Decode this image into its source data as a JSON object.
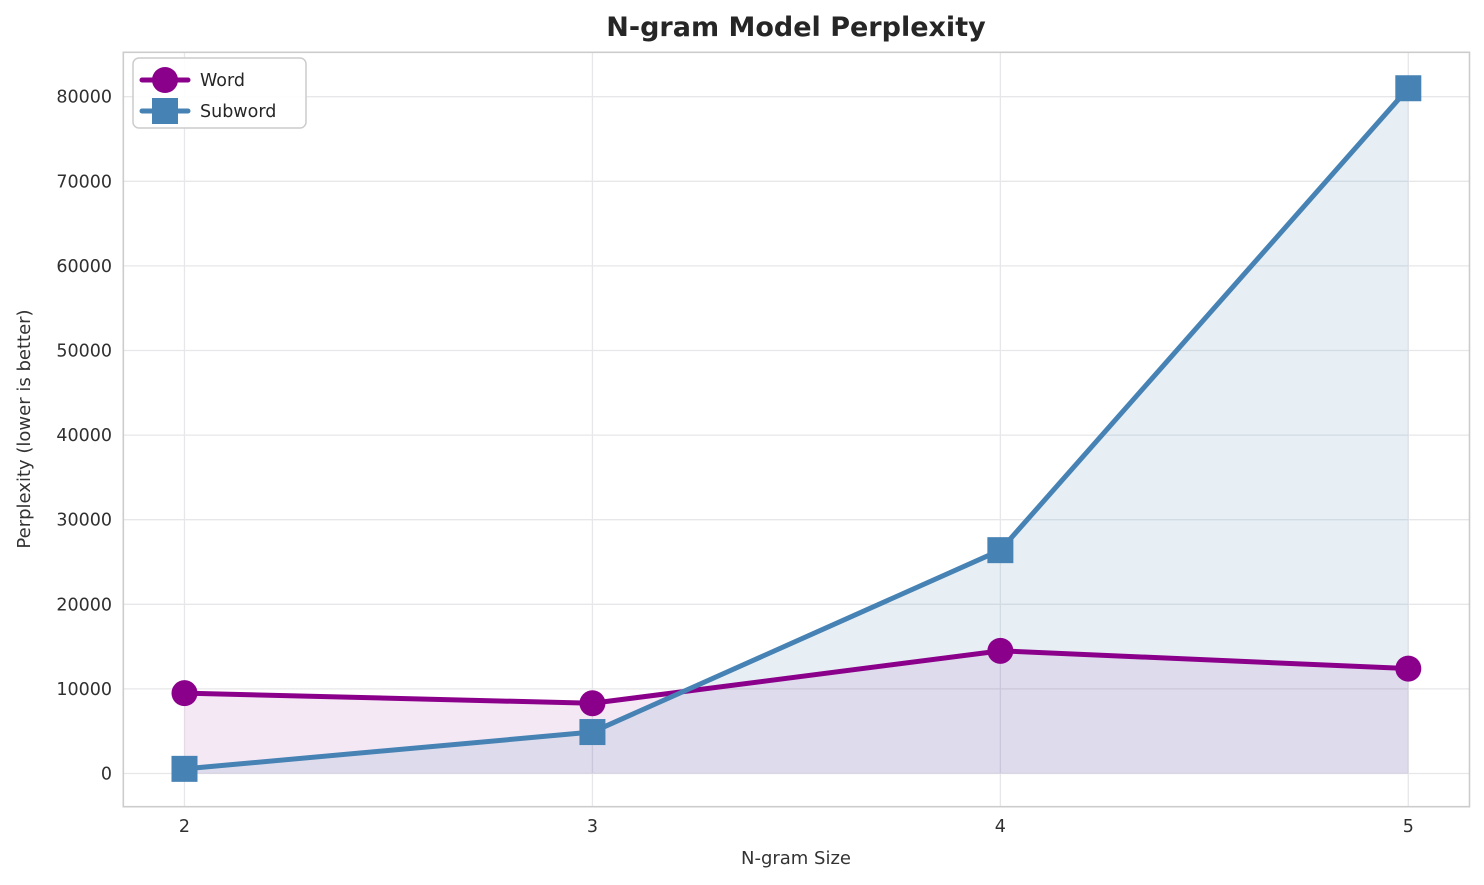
{
  "chart_data": {
    "type": "line",
    "title": "N-gram Model Perplexity",
    "xlabel": "N-gram Size",
    "ylabel": "Perplexity (lower is better)",
    "x": [
      2,
      3,
      4,
      5
    ],
    "xticks": [
      "2",
      "3",
      "4",
      "5"
    ],
    "yticks": [
      0,
      10000,
      20000,
      30000,
      40000,
      50000,
      60000,
      70000,
      80000
    ],
    "ytick_labels": [
      "0",
      "10000",
      "20000",
      "30000",
      "40000",
      "50000",
      "60000",
      "70000",
      "80000"
    ],
    "xlim": [
      1.85,
      5.15
    ],
    "ylim": [
      -3924,
      85249
    ],
    "grid": true,
    "legend_position": "upper-left",
    "series": [
      {
        "name": "Word",
        "color": "#8B008B",
        "marker": "circle",
        "values": [
          9500,
          8300,
          14500,
          12400
        ],
        "fill_to_zero": true,
        "fill_opacity": 0.09
      },
      {
        "name": "Subword",
        "color": "#4682B4",
        "marker": "square",
        "values": [
          550,
          4900,
          26400,
          81000
        ],
        "fill_to_zero": true,
        "fill_opacity": 0.13
      }
    ],
    "colors": {
      "title": "#262626",
      "axis_label": "#333333",
      "tick_label": "#303030",
      "grid": "#e7e7ea",
      "spine": "#cccccc",
      "legend_border": "#cccccc",
      "background": "#ffffff"
    }
  }
}
